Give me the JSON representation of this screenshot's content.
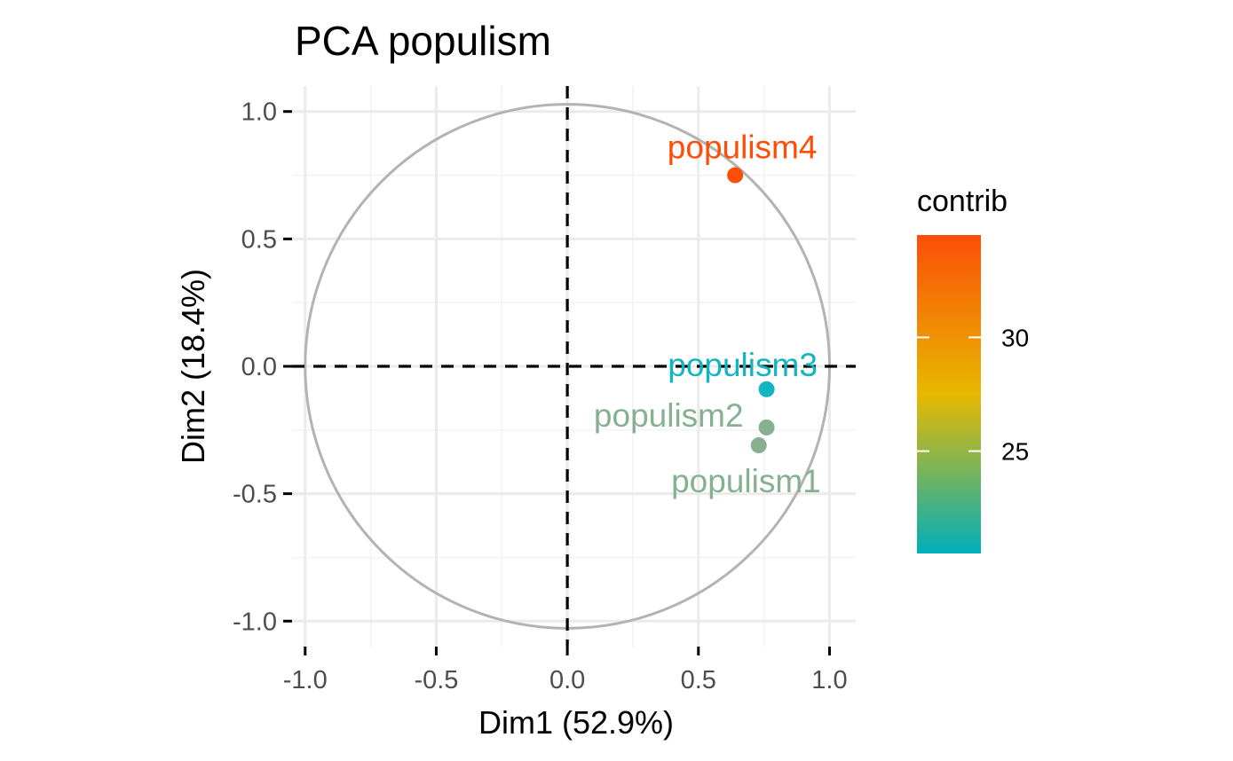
{
  "chart_data": {
    "type": "scatter",
    "title": "PCA populism",
    "xlabel": "Dim1 (52.9%)",
    "ylabel": "Dim2 (18.4%)",
    "xlim": [
      -1.05,
      1.1
    ],
    "ylim": [
      -1.1,
      1.1
    ],
    "x_ticks": [
      -1.0,
      -0.5,
      0.0,
      0.5,
      1.0
    ],
    "y_ticks": [
      -1.0,
      -0.5,
      0.0,
      0.5,
      1.0
    ],
    "x_tick_labels": [
      "-1.0",
      "-0.5",
      "0.0",
      "0.5",
      "1.0"
    ],
    "y_tick_labels": [
      "-1.0",
      "-0.5",
      "0.0",
      "0.5",
      "1.0"
    ],
    "grid": true,
    "unit_circle": true,
    "reference_lines": {
      "x": 0,
      "y": 0,
      "style": "dashed"
    },
    "points": [
      {
        "label": "populism1",
        "x": 0.73,
        "y": -0.31,
        "contrib": 22.6,
        "color": "#86b08f"
      },
      {
        "label": "populism2",
        "x": 0.76,
        "y": -0.24,
        "contrib": 22.9,
        "color": "#86b08f"
      },
      {
        "label": "populism3",
        "x": 0.76,
        "y": -0.09,
        "contrib": 20.5,
        "color": "#12b5c0"
      },
      {
        "label": "populism4",
        "x": 0.64,
        "y": 0.75,
        "contrib": 34.5,
        "color": "#fc4e07"
      }
    ],
    "legend": {
      "title": "contrib",
      "position": "right",
      "min": 20.5,
      "max": 34.5,
      "ticks": [
        25,
        30
      ],
      "tick_labels": [
        "25",
        "30"
      ],
      "gradient": [
        "#00AFBB",
        "#E7B800",
        "#FC4E07"
      ]
    }
  }
}
